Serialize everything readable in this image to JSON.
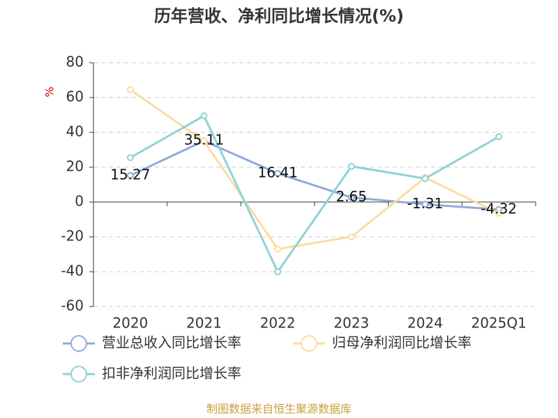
{
  "chart_data": {
    "type": "line",
    "title": "历年营收、净利同比增长情况(%)",
    "y_label": "%",
    "categories": [
      "2020",
      "2021",
      "2022",
      "2023",
      "2024",
      "2025Q1"
    ],
    "series": [
      {
        "name": "营业总收入同比增长率",
        "color": "#8eaadb",
        "values": [
          15.27,
          35.11,
          16.41,
          2.65,
          -1.31,
          -4.32
        ],
        "show_labels": true
      },
      {
        "name": "归母净利润同比增长率",
        "color": "#fcdca0",
        "values": [
          64.5,
          35,
          -27,
          -20,
          14,
          -6.5
        ]
      },
      {
        "name": "扣非净利润同比增长率",
        "color": "#8dd3d6",
        "values": [
          25.5,
          49.5,
          -40,
          20.5,
          13.5,
          37.5
        ]
      }
    ],
    "ylim": [
      -60,
      80
    ],
    "yticks": [
      -60,
      -40,
      -20,
      0,
      20,
      40,
      60,
      80
    ],
    "grid": true,
    "source": "制图数据来自恒生聚源数据库"
  }
}
